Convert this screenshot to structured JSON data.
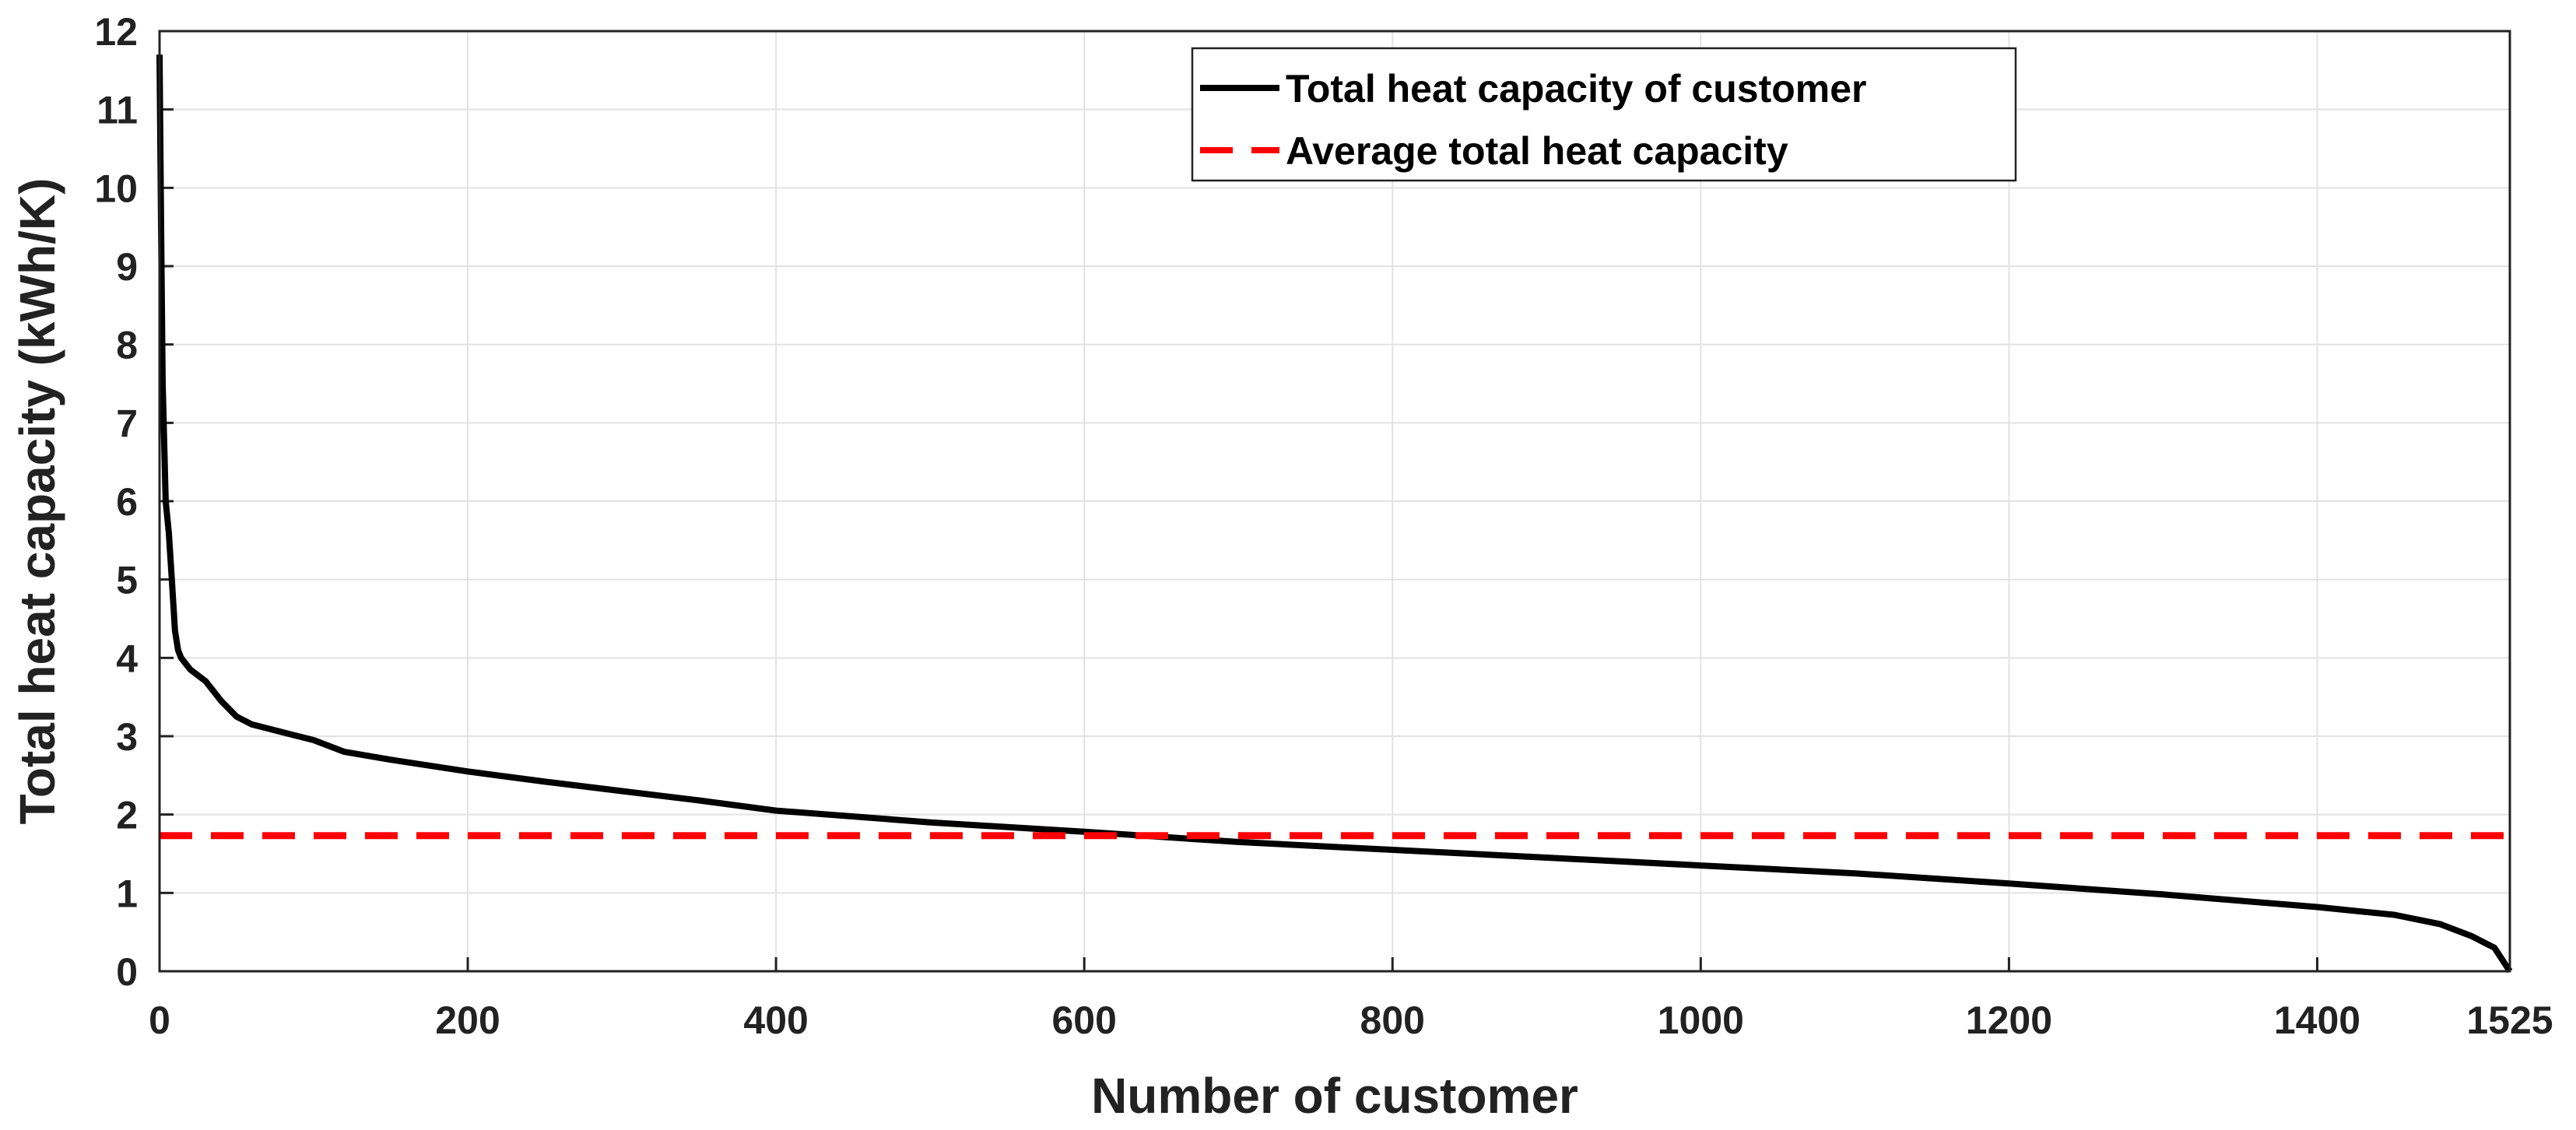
{
  "chart_data": {
    "type": "line",
    "title": "",
    "xlabel": "Number of customer",
    "ylabel": "Total heat capacity (kWh/K)",
    "xlim": [
      0,
      1525
    ],
    "ylim": [
      0,
      12
    ],
    "xticks": [
      0,
      200,
      400,
      600,
      800,
      1000,
      1200,
      1400,
      1525
    ],
    "yticks": [
      0,
      1,
      2,
      3,
      4,
      5,
      6,
      7,
      8,
      9,
      10,
      11,
      12
    ],
    "grid": true,
    "legend_position": "top-center",
    "series": [
      {
        "name": "Total heat capacity of customer",
        "style": "solid",
        "color": "#000000",
        "x": [
          0,
          1,
          2,
          4,
          6,
          8,
          10,
          12,
          14,
          16,
          20,
          30,
          40,
          50,
          60,
          80,
          100,
          120,
          150,
          200,
          250,
          300,
          350,
          400,
          500,
          600,
          700,
          800,
          900,
          1000,
          1100,
          1200,
          1300,
          1400,
          1450,
          1480,
          1500,
          1510,
          1515,
          1520,
          1525
        ],
        "y": [
          11.7,
          9.5,
          7.5,
          6.0,
          5.6,
          5.0,
          4.35,
          4.1,
          4.0,
          3.95,
          3.85,
          3.7,
          3.45,
          3.25,
          3.15,
          3.05,
          2.95,
          2.8,
          2.7,
          2.55,
          2.42,
          2.3,
          2.18,
          2.05,
          1.9,
          1.78,
          1.65,
          1.55,
          1.45,
          1.35,
          1.25,
          1.12,
          0.98,
          0.82,
          0.72,
          0.6,
          0.45,
          0.35,
          0.3,
          0.15,
          0.0
        ]
      },
      {
        "name": "Average total heat capacity",
        "style": "dashed",
        "color": "#ff0000",
        "x": [
          0,
          1525
        ],
        "y": [
          1.73,
          1.73
        ]
      }
    ]
  }
}
